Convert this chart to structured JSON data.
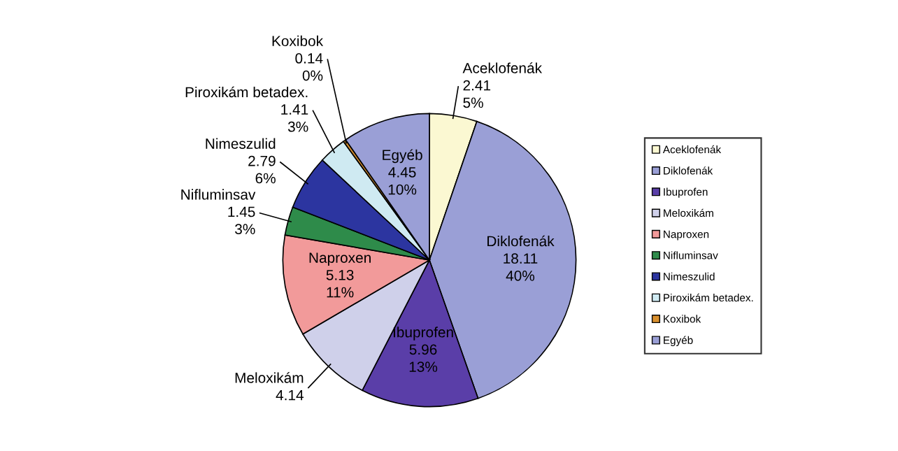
{
  "chart_data": {
    "type": "pie",
    "categories": [
      "Aceklofenák",
      "Diklofenák",
      "Ibuprofen",
      "Meloxikám",
      "Naproxen",
      "Nifluminsav",
      "Nimeszulid",
      "Piroxikám betadex.",
      "Koxibok",
      "Egyéb"
    ],
    "values": [
      2.41,
      18.11,
      5.96,
      4.14,
      5.13,
      1.45,
      2.79,
      1.41,
      0.14,
      4.45
    ],
    "colors": [
      "#fbf8d2",
      "#9a9fd6",
      "#5a3ea8",
      "#cfd0ea",
      "#f29a9a",
      "#2e8b4a",
      "#2c35a0",
      "#cfeaf2",
      "#d9902e",
      "#9a9fd6"
    ],
    "value_labels": [
      "2.41\n5%",
      "18.11\n40%",
      "5.96\n13%",
      "4.14",
      "5.13\n11%",
      "1.45\n3%",
      "2.79\n6%",
      "1.41\n3%",
      "0.14\n0%",
      "4.45\n10%"
    ],
    "legend": "right"
  }
}
